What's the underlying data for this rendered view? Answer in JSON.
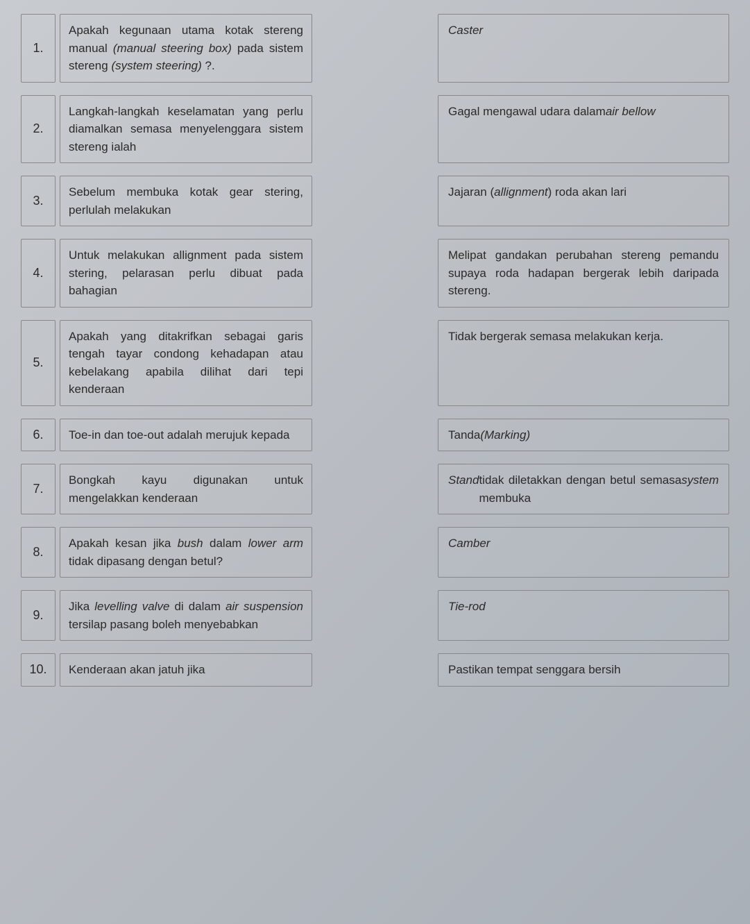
{
  "rows": [
    {
      "num": "1.",
      "question": "Apakah kegunaan utama kotak stereng manual <span class=\"italic\">(manual steering box)</span> pada sistem stereng <span class=\"italic\">(system steering)</span> ?.",
      "answer": "<span class=\"italic\">Caster</span>"
    },
    {
      "num": "2.",
      "question": "Langkah-langkah keselamatan yang perlu diamalkan semasa menyelenggara sistem stereng ialah",
      "answer": "Gagal mengawal udara dalam <span class=\"italic\">air bellow</span>"
    },
    {
      "num": "3.",
      "question": "Sebelum membuka kotak gear stering, perlulah melakukan",
      "answer": "Jajaran (<span class=\"italic\">allignment</span>) roda akan lari"
    },
    {
      "num": "4.",
      "question": "Untuk melakukan allignment pada sistem stering, pelarasan perlu dibuat pada bahagian",
      "answer": "Melipat gandakan perubahan stereng pemandu supaya roda hadapan bergerak lebih daripada stereng."
    },
    {
      "num": "5.",
      "question": "Apakah yang ditakrifkan sebagai garis tengah tayar condong kehadapan atau kebelakang apabila dilihat dari tepi kenderaan",
      "answer": "Tidak bergerak semasa melakukan kerja."
    },
    {
      "num": "6.",
      "question": "Toe-in dan toe-out adalah merujuk kepada",
      "answer": "Tanda <span class=\"italic\">(Marking)</span>"
    },
    {
      "num": "7.",
      "question": "Bongkah kayu digunakan untuk mengelakkan kenderaan",
      "answer": "<span class=\"italic\">Stand</span> tidak diletakkan dengan betul semasa membuka <span class=\"italic\">system</span>"
    },
    {
      "num": "8.",
      "question": "Apakah kesan jika <span class=\"italic\">bush</span> dalam <span class=\"italic\">lower arm</span> tidak dipasang dengan betul?",
      "answer": "<span class=\"italic\">Camber</span>"
    },
    {
      "num": "9.",
      "question": "Jika <span class=\"italic\">levelling valve</span> di dalam <span class=\"italic\">air suspension</span> tersilap pasang boleh menyebabkan",
      "answer": "<span class=\"italic\">Tie-rod</span>"
    },
    {
      "num": "10.",
      "question": "Kenderaan akan jatuh jika",
      "answer": "Pastikan tempat senggara bersih"
    }
  ],
  "styling": {
    "background_gradient": [
      "#c8ccd0",
      "#b8bcc2",
      "#aab0b8"
    ],
    "border_color": "#888888",
    "text_color": "#2a2a2a",
    "font_family": "Verdana",
    "font_size_body": 17,
    "font_size_number": 18,
    "box_border_radius": 2,
    "left_column_width": 420,
    "right_column_width": 420,
    "number_box_width": 50,
    "row_gap": 18,
    "column_gap": 120
  }
}
